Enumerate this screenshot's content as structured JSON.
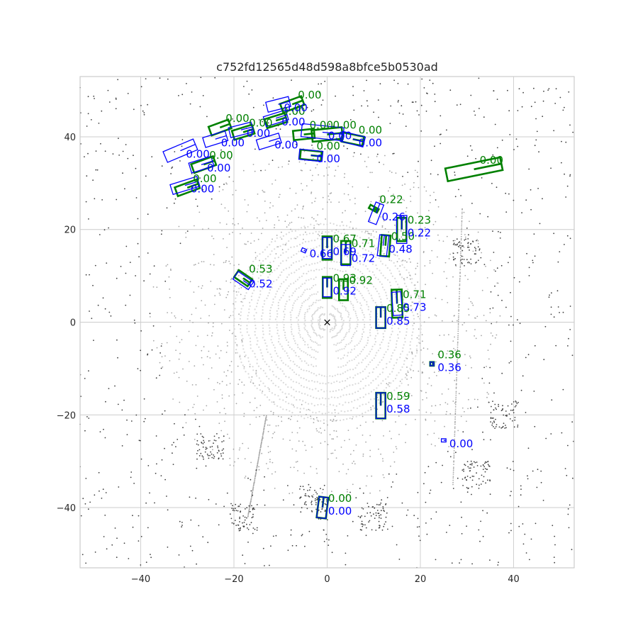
{
  "chart_data": {
    "type": "scatter",
    "title": "c752fd12565d48d598a8bfce5b0530ad",
    "xlabel": "",
    "ylabel": "",
    "xlim": [
      -53,
      53
    ],
    "ylim": [
      -53,
      53
    ],
    "xticks": [
      -40,
      -20,
      0,
      20,
      40
    ],
    "yticks": [
      -40,
      -20,
      0,
      20,
      40
    ],
    "grid": true,
    "ego_marker": {
      "x": 0,
      "y": 0,
      "symbol": "×"
    },
    "colors": {
      "ground_truth": "#008000",
      "prediction": "#0000ff",
      "grid": "#cccccc",
      "near_points": "#d9d9d9",
      "mid_points": "#a6a6a6",
      "far_points": "#404040"
    },
    "series": [
      {
        "role": "ground_truth",
        "boxes": [
          {
            "x": -7.5,
            "y": 47,
            "l": 4.8,
            "w": 2.0,
            "yaw": 0.35,
            "score": "0.00"
          },
          {
            "x": -23,
            "y": 42,
            "l": 4.5,
            "w": 2.0,
            "yaw": 0.35,
            "score": "0.00"
          },
          {
            "x": -18,
            "y": 41,
            "l": 4.5,
            "w": 2.0,
            "yaw": 0.3,
            "score": "0.00"
          },
          {
            "x": -11,
            "y": 43.5,
            "l": 4.5,
            "w": 2.0,
            "yaw": 0.3,
            "score": "0.00"
          },
          {
            "x": -5,
            "y": 40.5,
            "l": 4.5,
            "w": 2.0,
            "yaw": 0.1,
            "score": "0.00"
          },
          {
            "x": 0,
            "y": 40.5,
            "l": 6.5,
            "w": 2.5,
            "yaw": 0.1,
            "score": "0.00"
          },
          {
            "x": 5.5,
            "y": 39.5,
            "l": 4.5,
            "w": 2.0,
            "yaw": -0.2,
            "score": "0.00"
          },
          {
            "x": -26.5,
            "y": 34,
            "l": 5.0,
            "w": 2.0,
            "yaw": 0.35,
            "score": "0.00"
          },
          {
            "x": -3.5,
            "y": 36,
            "l": 4.5,
            "w": 2.0,
            "yaw": -0.1,
            "score": "0.00"
          },
          {
            "x": -30,
            "y": 29,
            "l": 5.0,
            "w": 2.0,
            "yaw": 0.35,
            "score": "0.00"
          },
          {
            "x": 31.5,
            "y": 33,
            "l": 12.0,
            "w": 2.8,
            "yaw": 0.2,
            "score": "0.00"
          },
          {
            "x": 10,
            "y": 24.5,
            "l": 2.0,
            "w": 0.8,
            "yaw": -0.5,
            "score": "0.22"
          },
          {
            "x": 16,
            "y": 20,
            "l": 5.0,
            "w": 2.0,
            "yaw": 1.57,
            "score": "0.23"
          },
          {
            "x": 0,
            "y": 16,
            "l": 5.0,
            "w": 2.0,
            "yaw": 1.57,
            "score": "0.67"
          },
          {
            "x": 4,
            "y": 15,
            "l": 5.0,
            "w": 2.0,
            "yaw": 1.57,
            "score": "0.71"
          },
          {
            "x": 12.5,
            "y": 16.5,
            "l": 4.5,
            "w": 1.9,
            "yaw": 1.5,
            "score": "0.50"
          },
          {
            "x": -18,
            "y": 9.5,
            "l": 3.5,
            "w": 1.8,
            "yaw": -0.6,
            "score": "0.53"
          },
          {
            "x": 0,
            "y": 7.5,
            "l": 4.5,
            "w": 1.9,
            "yaw": 1.57,
            "score": "0.93"
          },
          {
            "x": 3.5,
            "y": 7,
            "l": 4.5,
            "w": 1.9,
            "yaw": 1.57,
            "score": "0.92"
          },
          {
            "x": 15,
            "y": 4,
            "l": 6.0,
            "w": 2.2,
            "yaw": 1.6,
            "score": "0.71"
          },
          {
            "x": 11.5,
            "y": 1,
            "l": 4.5,
            "w": 2.0,
            "yaw": 1.57,
            "score": "0.85"
          },
          {
            "x": 22.5,
            "y": -9,
            "l": 0.8,
            "w": 0.8,
            "yaw": 0,
            "score": "0.36"
          },
          {
            "x": 11.5,
            "y": -18,
            "l": 5.5,
            "w": 2.0,
            "yaw": 1.57,
            "score": "0.59"
          },
          {
            "x": -1,
            "y": -40,
            "l": 4.5,
            "w": 2.0,
            "yaw": 1.45,
            "score": "0.00"
          }
        ]
      },
      {
        "role": "prediction",
        "boxes": [
          {
            "x": -10.5,
            "y": 47,
            "l": 5.0,
            "w": 2.2,
            "yaw": 0.25,
            "score": "0.00"
          },
          {
            "x": -24,
            "y": 39.5,
            "l": 5.0,
            "w": 2.2,
            "yaw": 0.3,
            "score": "0.00"
          },
          {
            "x": -18.5,
            "y": 41.5,
            "l": 5.0,
            "w": 2.2,
            "yaw": 0.25,
            "score": "0.00"
          },
          {
            "x": -11,
            "y": 44,
            "l": 5.0,
            "w": 2.2,
            "yaw": 0.3,
            "score": "0.00"
          },
          {
            "x": -12.5,
            "y": 39,
            "l": 5.0,
            "w": 2.2,
            "yaw": 0.3,
            "score": "0.00"
          },
          {
            "x": -1,
            "y": 41,
            "l": 9.0,
            "w": 2.8,
            "yaw": -0.1,
            "score": "0.00"
          },
          {
            "x": 5.5,
            "y": 39.5,
            "l": 5.0,
            "w": 2.2,
            "yaw": -0.25,
            "score": "0.00"
          },
          {
            "x": -31.5,
            "y": 37,
            "l": 7.0,
            "w": 2.5,
            "yaw": 0.4,
            "score": "0.00"
          },
          {
            "x": -27,
            "y": 34,
            "l": 5.0,
            "w": 2.2,
            "yaw": 0.3,
            "score": "0.00"
          },
          {
            "x": -3.5,
            "y": 36,
            "l": 5.0,
            "w": 2.2,
            "yaw": -0.1,
            "score": "0.00"
          },
          {
            "x": -30.5,
            "y": 29.5,
            "l": 6.0,
            "w": 2.2,
            "yaw": 0.3,
            "score": "0.00"
          },
          {
            "x": 10.5,
            "y": 23.5,
            "l": 4.5,
            "w": 1.8,
            "yaw": 1.2,
            "score": "0.26"
          },
          {
            "x": 16,
            "y": 20,
            "l": 6.0,
            "w": 2.2,
            "yaw": 1.57,
            "score": "0.22"
          },
          {
            "x": 0,
            "y": 16,
            "l": 4.5,
            "w": 2.0,
            "yaw": 1.57,
            "score": "0.69"
          },
          {
            "x": 4,
            "y": 14.5,
            "l": 4.5,
            "w": 2.0,
            "yaw": 1.57,
            "score": "0.72"
          },
          {
            "x": -5,
            "y": 15.5,
            "l": 1.0,
            "w": 0.8,
            "yaw": -0.4,
            "score": "0.66"
          },
          {
            "x": 12,
            "y": 16.5,
            "l": 4.5,
            "w": 2.0,
            "yaw": 1.45,
            "score": "0.48"
          },
          {
            "x": -18,
            "y": 9,
            "l": 4.0,
            "w": 2.0,
            "yaw": -0.6,
            "score": "0.52"
          },
          {
            "x": 0,
            "y": 7.5,
            "l": 4.0,
            "w": 1.8,
            "yaw": 1.57,
            "score": "0.92"
          },
          {
            "x": 15,
            "y": 4,
            "l": 5.0,
            "w": 2.0,
            "yaw": 1.65,
            "score": "0.73"
          },
          {
            "x": 11.5,
            "y": 1,
            "l": 4.5,
            "w": 2.0,
            "yaw": 1.57,
            "score": "0.85"
          },
          {
            "x": 22.5,
            "y": -9,
            "l": 0.8,
            "w": 0.8,
            "yaw": 0,
            "score": "0.36"
          },
          {
            "x": 11.5,
            "y": -18,
            "l": 5.5,
            "w": 2.0,
            "yaw": 1.57,
            "score": "0.58"
          },
          {
            "x": 25,
            "y": -25.5,
            "l": 1.0,
            "w": 0.7,
            "yaw": 0,
            "score": "0.00"
          },
          {
            "x": -1,
            "y": -40,
            "l": 4.5,
            "w": 2.0,
            "yaw": 1.45,
            "score": "0.00"
          }
        ]
      }
    ]
  }
}
